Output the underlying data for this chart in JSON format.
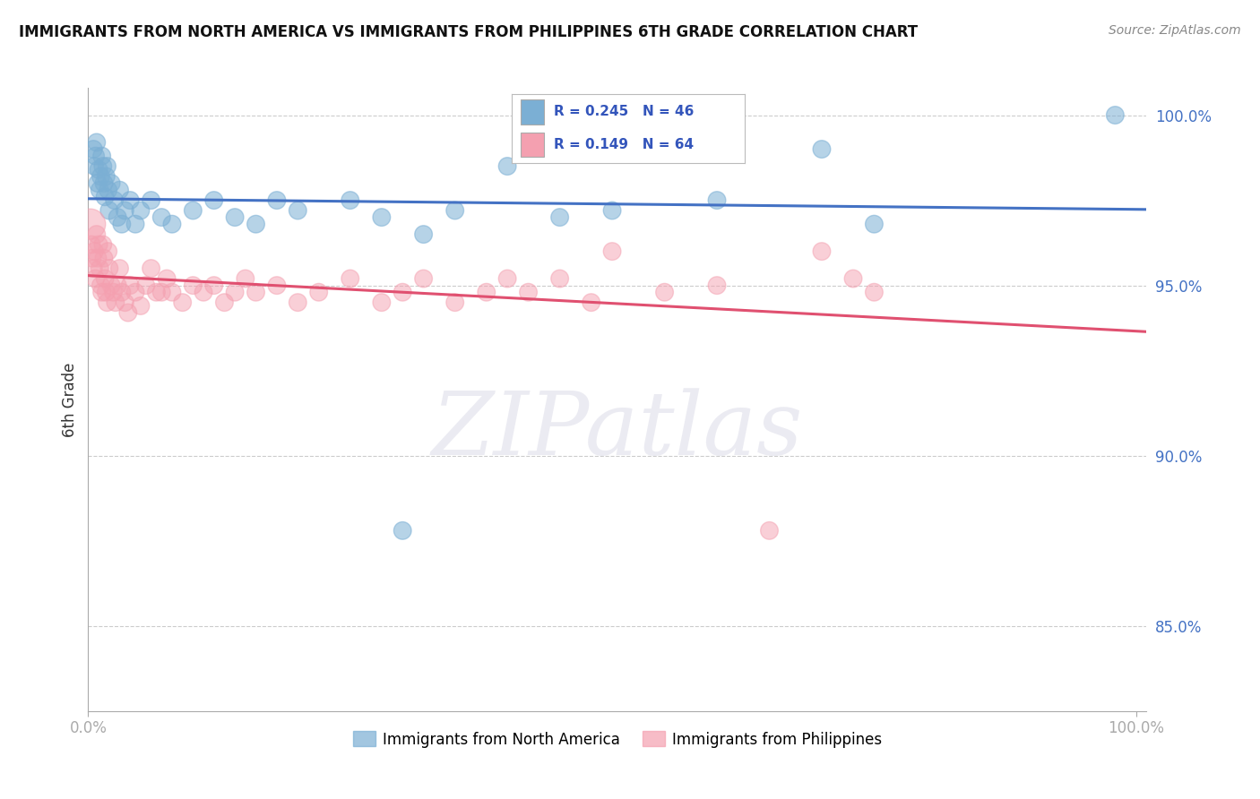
{
  "title": "IMMIGRANTS FROM NORTH AMERICA VS IMMIGRANTS FROM PHILIPPINES 6TH GRADE CORRELATION CHART",
  "source_text": "Source: ZipAtlas.com",
  "ylabel": "6th Grade",
  "ylim": [
    0.825,
    1.008
  ],
  "xlim": [
    0.0,
    1.01
  ],
  "yticks": [
    0.85,
    0.9,
    0.95,
    1.0
  ],
  "ytick_labels": [
    "85.0%",
    "90.0%",
    "95.0%",
    "100.0%"
  ],
  "blue_R": 0.245,
  "blue_N": 46,
  "pink_R": 0.149,
  "pink_N": 64,
  "blue_color": "#7BAFD4",
  "pink_color": "#F4A0B0",
  "blue_line_color": "#4472C4",
  "pink_line_color": "#E05070",
  "legend_blue": "Immigrants from North America",
  "legend_pink": "Immigrants from Philippines",
  "blue_x": [
    0.005,
    0.006,
    0.007,
    0.008,
    0.009,
    0.01,
    0.011,
    0.012,
    0.013,
    0.014,
    0.015,
    0.016,
    0.017,
    0.018,
    0.019,
    0.02,
    0.022,
    0.025,
    0.028,
    0.03,
    0.032,
    0.035,
    0.04,
    0.045,
    0.05,
    0.06,
    0.07,
    0.08,
    0.1,
    0.12,
    0.14,
    0.16,
    0.18,
    0.2,
    0.25,
    0.28,
    0.3,
    0.32,
    0.35,
    0.4,
    0.45,
    0.5,
    0.6,
    0.7,
    0.75,
    0.98
  ],
  "blue_y": [
    0.99,
    0.985,
    0.988,
    0.992,
    0.98,
    0.984,
    0.978,
    0.982,
    0.988,
    0.985,
    0.98,
    0.976,
    0.982,
    0.985,
    0.978,
    0.972,
    0.98,
    0.975,
    0.97,
    0.978,
    0.968,
    0.972,
    0.975,
    0.968,
    0.972,
    0.975,
    0.97,
    0.968,
    0.972,
    0.975,
    0.97,
    0.968,
    0.975,
    0.972,
    0.975,
    0.97,
    0.878,
    0.965,
    0.972,
    0.985,
    0.97,
    0.972,
    0.975,
    0.99,
    0.968,
    1.0
  ],
  "pink_x": [
    0.002,
    0.003,
    0.004,
    0.005,
    0.006,
    0.007,
    0.008,
    0.009,
    0.01,
    0.011,
    0.012,
    0.013,
    0.014,
    0.015,
    0.016,
    0.017,
    0.018,
    0.019,
    0.02,
    0.022,
    0.024,
    0.026,
    0.028,
    0.03,
    0.032,
    0.035,
    0.038,
    0.04,
    0.045,
    0.05,
    0.055,
    0.06,
    0.065,
    0.07,
    0.075,
    0.08,
    0.09,
    0.1,
    0.11,
    0.12,
    0.13,
    0.14,
    0.15,
    0.16,
    0.18,
    0.2,
    0.22,
    0.25,
    0.28,
    0.3,
    0.32,
    0.35,
    0.38,
    0.4,
    0.42,
    0.45,
    0.48,
    0.5,
    0.55,
    0.6,
    0.65,
    0.7,
    0.73,
    0.75
  ],
  "pink_y": [
    0.968,
    0.962,
    0.958,
    0.955,
    0.96,
    0.952,
    0.965,
    0.958,
    0.962,
    0.955,
    0.95,
    0.948,
    0.962,
    0.958,
    0.952,
    0.948,
    0.945,
    0.96,
    0.955,
    0.95,
    0.948,
    0.945,
    0.95,
    0.955,
    0.948,
    0.945,
    0.942,
    0.95,
    0.948,
    0.944,
    0.95,
    0.955,
    0.948,
    0.948,
    0.952,
    0.948,
    0.945,
    0.95,
    0.948,
    0.95,
    0.945,
    0.948,
    0.952,
    0.948,
    0.95,
    0.945,
    0.948,
    0.952,
    0.945,
    0.948,
    0.952,
    0.945,
    0.948,
    0.952,
    0.948,
    0.952,
    0.945,
    0.96,
    0.948,
    0.95,
    0.878,
    0.96,
    0.952,
    0.948
  ],
  "pink_size_large_idx": 0,
  "marker_size": 200
}
